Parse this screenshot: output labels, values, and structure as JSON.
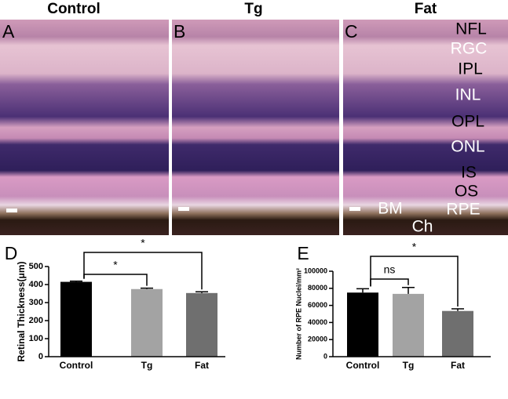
{
  "panels": {
    "titles": [
      "Control",
      "Tg",
      "Fat"
    ],
    "letters": [
      "A",
      "B",
      "C"
    ],
    "layers": [
      "NFL",
      "RGC",
      "IPL",
      "INL",
      "OPL",
      "ONL",
      "IS",
      "OS",
      "RPE"
    ],
    "extra_labels": [
      "BM",
      "Ch"
    ]
  },
  "chart_data": [
    {
      "type": "bar",
      "label": "D",
      "y_label": "Retinal Thickness(μm)",
      "categories": [
        "Control",
        "Tg",
        "Fat"
      ],
      "values": [
        415,
        375,
        353
      ],
      "errors": [
        4,
        5,
        7
      ],
      "colors": [
        "#000000",
        "#a3a3a3",
        "#6f6f6f"
      ],
      "ylim": [
        0,
        500
      ],
      "yticks": [
        0,
        100,
        200,
        300,
        400,
        500
      ],
      "brackets": [
        {
          "between": [
            "Control",
            "Tg"
          ],
          "label": "*"
        },
        {
          "between": [
            "Control",
            "Fat"
          ],
          "label": "*"
        }
      ]
    },
    {
      "type": "bar",
      "label": "E",
      "y_label": "Number of RPE Nuclei/mm²",
      "categories": [
        "Control",
        "Tg",
        "Fat"
      ],
      "values": [
        75000,
        73500,
        53500
      ],
      "errors": [
        4500,
        7500,
        2500
      ],
      "colors": [
        "#000000",
        "#a3a3a3",
        "#6f6f6f"
      ],
      "ylim": [
        0,
        100000
      ],
      "yticks": [
        0,
        20000,
        40000,
        60000,
        80000,
        100000
      ],
      "brackets": [
        {
          "between": [
            "Control",
            "Tg"
          ],
          "label": "ns"
        },
        {
          "between": [
            "Control",
            "Fat"
          ],
          "label": "*"
        }
      ]
    }
  ]
}
